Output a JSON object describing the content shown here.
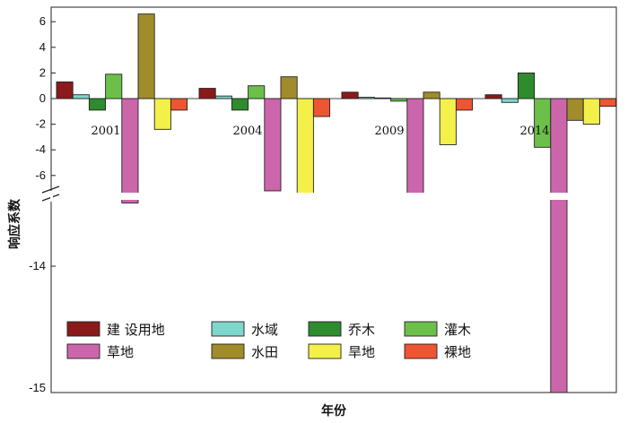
{
  "chart_data": {
    "type": "bar",
    "xlabel": "年份",
    "ylabel": "响应系数",
    "categories": [
      "2001",
      "2004",
      "2009",
      "2014"
    ],
    "y_ticks_upper": [
      "6",
      "4",
      "2",
      "0",
      "-2",
      "-4",
      "-6"
    ],
    "y_ticks_lower": [
      "-14",
      "-15"
    ],
    "axis_break": true,
    "legend_position": "bottom-left",
    "series": [
      {
        "name": "建 设用地",
        "color": "#8b1a1a",
        "values": [
          1.3,
          0.8,
          0.5,
          0.3
        ]
      },
      {
        "name": "水域",
        "color": "#7fd6cc",
        "values": [
          0.3,
          0.2,
          0.1,
          -0.3
        ]
      },
      {
        "name": "乔木",
        "color": "#2e8b2e",
        "values": [
          -0.9,
          -0.9,
          0.05,
          2.0
        ]
      },
      {
        "name": "灌木",
        "color": "#6cc04a",
        "values": [
          1.9,
          1.0,
          -0.2,
          -3.8
        ]
      },
      {
        "name": "草地",
        "color": "#cc66aa",
        "values": [
          -13.5,
          -7.2,
          -7.5,
          -15.0
        ]
      },
      {
        "name": "水田",
        "color": "#a08c2a",
        "values": [
          6.6,
          1.7,
          0.5,
          -1.7
        ]
      },
      {
        "name": "旱地",
        "color": "#f4f04a",
        "values": [
          -2.4,
          -7.5,
          -3.6,
          -2.0
        ]
      },
      {
        "name": "裸地",
        "color": "#ee5533",
        "values": [
          -0.9,
          -1.4,
          -0.9,
          -0.6
        ]
      }
    ]
  }
}
